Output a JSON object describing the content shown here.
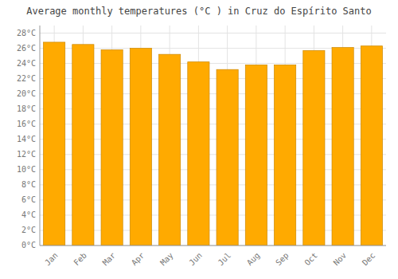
{
  "chart_data": {
    "type": "bar",
    "title": "Average monthly temperatures (°C ) in Cruz do Espírito Santo",
    "categories": [
      "Jan",
      "Feb",
      "Mar",
      "Apr",
      "May",
      "Jun",
      "Jul",
      "Aug",
      "Sep",
      "Oct",
      "Nov",
      "Dec"
    ],
    "values": [
      26.8,
      26.5,
      25.8,
      26.0,
      25.2,
      24.2,
      23.2,
      23.8,
      23.8,
      25.7,
      26.1,
      26.3
    ],
    "color": "#FFAA00",
    "ylim": [
      0,
      29
    ],
    "yticks": [
      {
        "value": 0,
        "label": "0°C"
      },
      {
        "value": 2,
        "label": "2°C"
      },
      {
        "value": 4,
        "label": "4°C"
      },
      {
        "value": 6,
        "label": "6°C"
      },
      {
        "value": 8,
        "label": "8°C"
      },
      {
        "value": 10,
        "label": "10°C"
      },
      {
        "value": 12,
        "label": "12°C"
      },
      {
        "value": 14,
        "label": "14°C"
      },
      {
        "value": 16,
        "label": "16°C"
      },
      {
        "value": 18,
        "label": "18°C"
      },
      {
        "value": 20,
        "label": "20°C"
      },
      {
        "value": 22,
        "label": "22°C"
      },
      {
        "value": 24,
        "label": "24°C"
      },
      {
        "value": 26,
        "label": "26°C"
      },
      {
        "value": 28,
        "label": "28°C"
      }
    ],
    "grid": true
  }
}
